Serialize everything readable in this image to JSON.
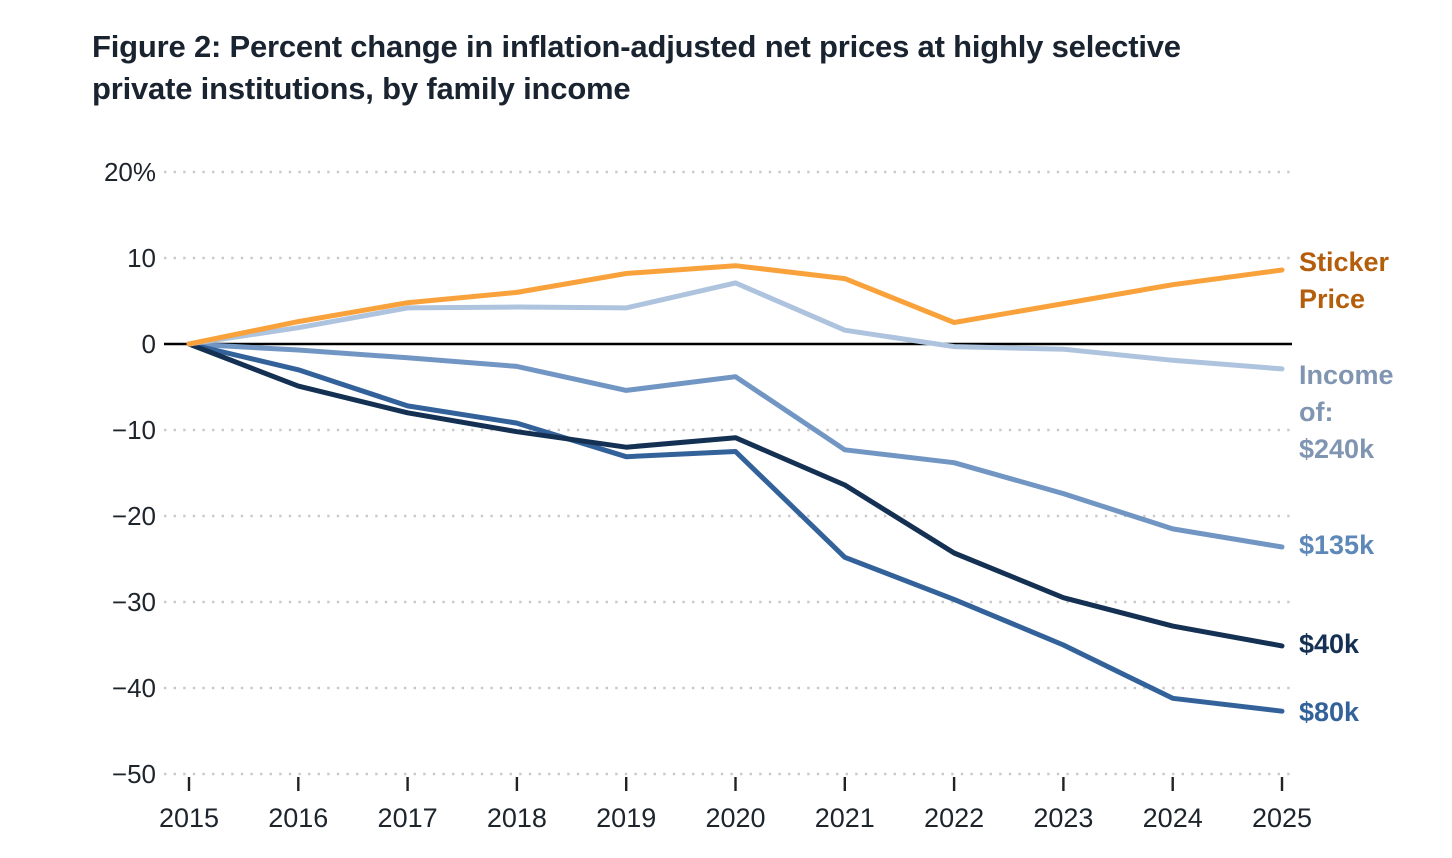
{
  "title": "Figure 2: Percent change in inflation-adjusted net prices at highly selective private institutions, by family income",
  "title_lines": [
    "Figure 2: Percent change in inflation-adjusted net prices at highly selective",
    "private institutions, by family income"
  ],
  "chart_data": {
    "type": "line",
    "x": [
      2015,
      2016,
      2017,
      2018,
      2019,
      2020,
      2021,
      2022,
      2023,
      2024,
      2025
    ],
    "x_tick_labels": [
      "2015",
      "2016",
      "2017",
      "2018",
      "2019",
      "2020",
      "2021",
      "2022",
      "2023",
      "2024",
      "2025"
    ],
    "y_axis": {
      "ticks": [
        20,
        10,
        0,
        -10,
        -20,
        -30,
        -40,
        -50
      ],
      "tick_labels": [
        "20%",
        "10",
        "0",
        "−10",
        "−20",
        "−30",
        "−40",
        "−50"
      ],
      "range": [
        -50,
        20
      ],
      "unit": "percent"
    },
    "grid": "horizontal-dotted",
    "zero_line": true,
    "legend_position": "right-of-lines",
    "series": [
      {
        "name": "Sticker Price",
        "label_lines": [
          "Sticker",
          "Price"
        ],
        "color": "#F9A23B",
        "label_color": "#B45E0B",
        "values": [
          0,
          2.6,
          4.8,
          6.0,
          8.2,
          9.1,
          7.6,
          2.5,
          4.7,
          6.9,
          8.6
        ]
      },
      {
        "name": "Income of: $240k",
        "label_lines": [
          "Income",
          "of:",
          "$240k"
        ],
        "color": "#AEC3DE",
        "label_color": "#8095B2",
        "values": [
          0,
          1.9,
          4.2,
          4.3,
          4.2,
          7.1,
          1.6,
          -0.3,
          -0.6,
          -1.9,
          -2.9
        ]
      },
      {
        "name": "$135k",
        "label_lines": [
          "$135k"
        ],
        "color": "#7296C3",
        "label_color": "#5E88B8",
        "values": [
          0,
          -0.7,
          -1.6,
          -2.6,
          -5.4,
          -3.8,
          -12.3,
          -13.8,
          -17.4,
          -21.5,
          -23.6
        ]
      },
      {
        "name": "$40k",
        "label_lines": [
          "$40k"
        ],
        "color": "#143153",
        "label_color": "#143153",
        "values": [
          0,
          -4.9,
          -8.0,
          -10.2,
          -12.0,
          -10.9,
          -16.4,
          -24.3,
          -29.5,
          -32.8,
          -35.1
        ]
      },
      {
        "name": "$80k",
        "label_lines": [
          "$80k"
        ],
        "color": "#33629B",
        "label_color": "#33629B",
        "values": [
          0,
          -3.0,
          -7.2,
          -9.2,
          -13.1,
          -12.5,
          -24.8,
          -29.7,
          -35.0,
          -41.2,
          -42.7
        ]
      }
    ]
  }
}
